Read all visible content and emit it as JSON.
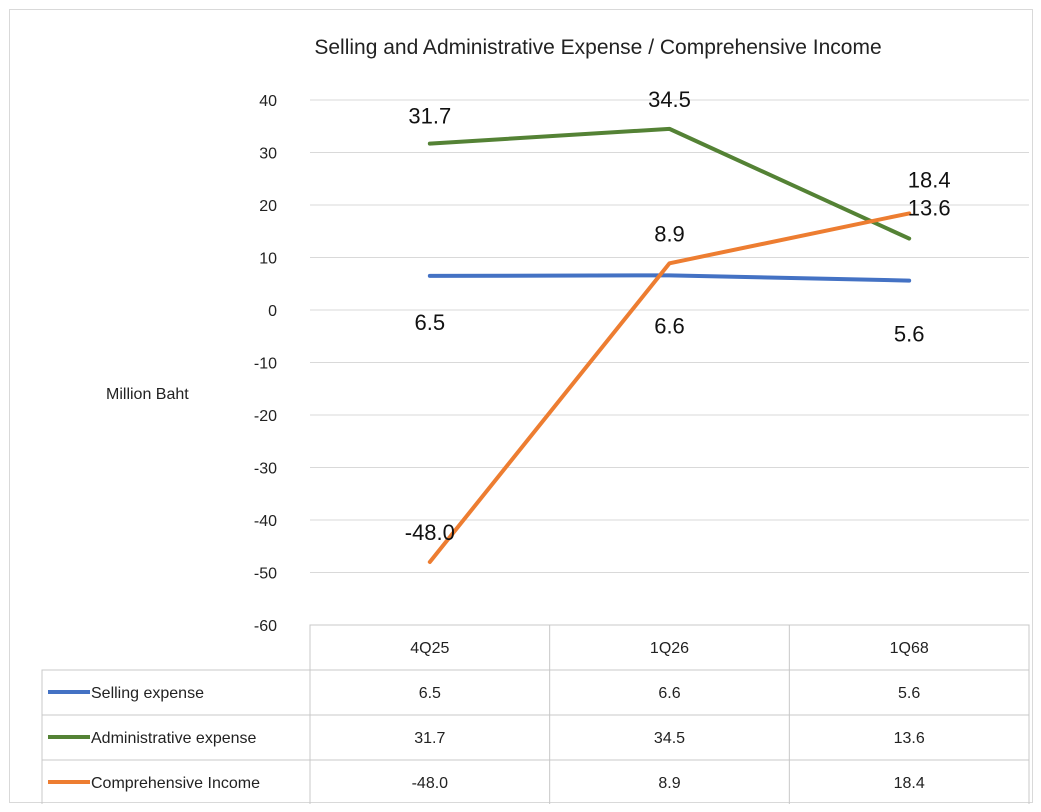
{
  "chart_data": {
    "type": "line",
    "title": "Selling and Administrative Expense / Comprehensive Income",
    "ylabel": "Million Baht",
    "xlabel": "",
    "categories": [
      "4Q25",
      "1Q26",
      "1Q68"
    ],
    "ylim": [
      -60,
      40
    ],
    "yticks": [
      40,
      30,
      20,
      10,
      0,
      -10,
      -20,
      -30,
      -40,
      -50,
      -60
    ],
    "grid": true,
    "legend": "data-table",
    "series": [
      {
        "name": "Selling expense",
        "values": [
          6.5,
          6.6,
          5.6
        ],
        "labels": [
          "6.5",
          "6.6",
          "5.6"
        ],
        "color": "#4472c4"
      },
      {
        "name": "Administrative expense",
        "values": [
          31.7,
          34.5,
          13.6
        ],
        "labels": [
          "31.7",
          "34.5",
          "13.6"
        ],
        "color": "#548235"
      },
      {
        "name": "Comprehensive Income",
        "values": [
          -48.0,
          8.9,
          18.4
        ],
        "labels": [
          "-48.0",
          "8.9",
          "18.4"
        ],
        "color": "#ed7d31"
      }
    ]
  }
}
